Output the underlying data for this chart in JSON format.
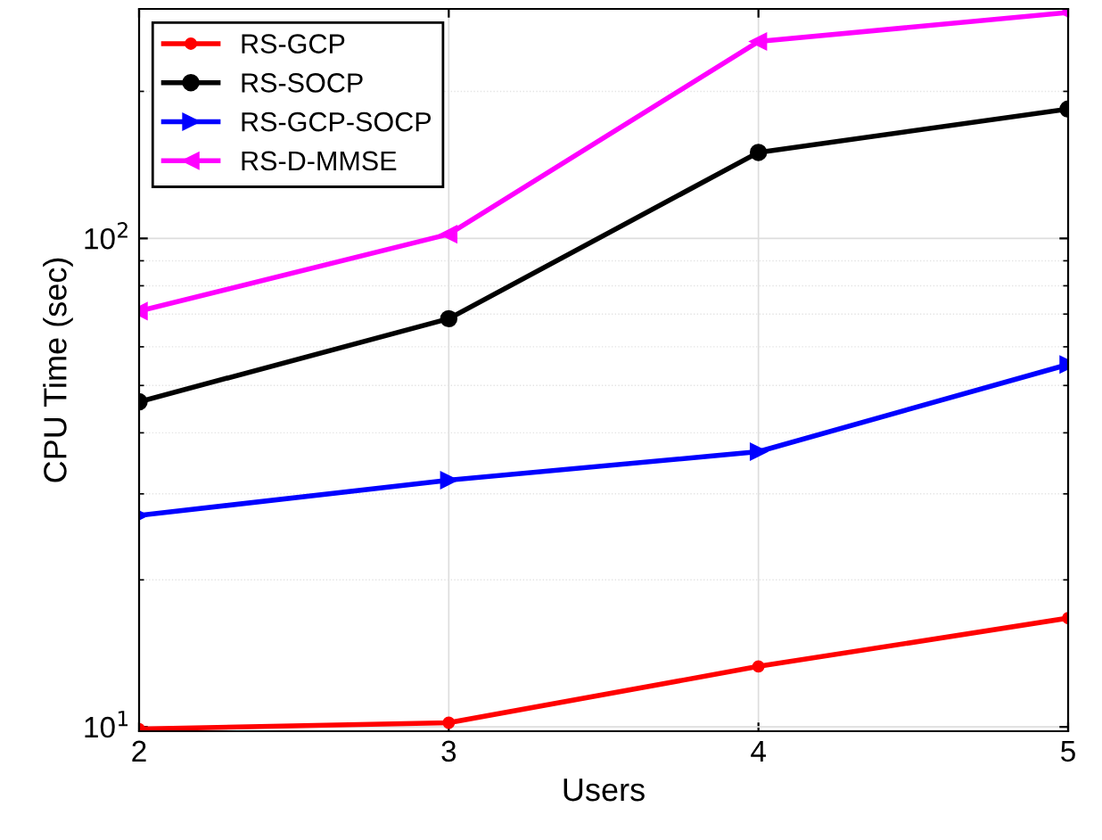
{
  "chart_data": {
    "type": "line",
    "xlabel": "Users",
    "ylabel": "CPU Time (sec)",
    "x": [
      2,
      3,
      4,
      5
    ],
    "xlim": [
      2,
      5
    ],
    "xticks": [
      2,
      3,
      4,
      5
    ],
    "log": "y",
    "ylim": [
      9.8,
      295
    ],
    "yticks": [
      {
        "value": 10,
        "label": "10$^{1}$"
      },
      {
        "value": 100,
        "label": "10$^{2}$"
      }
    ],
    "grid": true,
    "legend": "top left",
    "line_style": "solid",
    "series": [
      {
        "name": "RS-GCP",
        "color": "#ff0000",
        "marker": "circle",
        "values": [
          9.9,
          10.2,
          13.3,
          16.7
        ]
      },
      {
        "name": "RS-SOCP",
        "color": "#000000",
        "marker": "circle",
        "values": [
          46.3,
          68.5,
          150,
          184
        ]
      },
      {
        "name": "RS-GCP-SOCP",
        "color": "#0000ff",
        "marker": "triangle-right",
        "values": [
          27.1,
          32,
          36.6,
          55.2
        ]
      },
      {
        "name": "RS-D-MMSE",
        "color": "#ff00ff",
        "marker": "triangle-left",
        "values": [
          71,
          102,
          253,
          290
        ]
      }
    ]
  }
}
